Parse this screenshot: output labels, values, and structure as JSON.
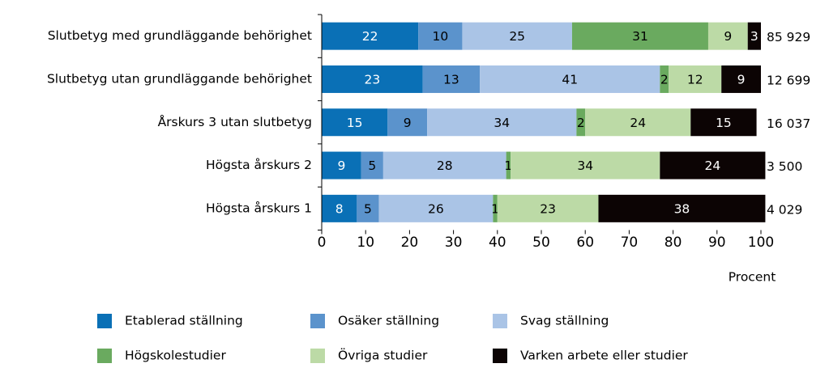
{
  "chart_data": {
    "type": "stacked_bar_horizontal",
    "categories": [
      "Slutbetyg med grundläggande behörighet",
      "Slutbetyg utan grundläggande behörighet",
      "Årskurs 3 utan slutbetyg",
      "Högsta årskurs 2",
      "Högsta årskurs 1"
    ],
    "row_labels": [
      "85 929",
      "12 699",
      "16 037",
      "3 500",
      "4 029"
    ],
    "series": [
      {
        "name": "Etablerad ställning",
        "color": "#0a70b6",
        "label_color": "#ffffff",
        "values": [
          22,
          23,
          15,
          9,
          8
        ]
      },
      {
        "name": "Osäker ställning",
        "color": "#5b93cc",
        "label_color": "#000000",
        "values": [
          10,
          13,
          9,
          5,
          5
        ]
      },
      {
        "name": "Svag ställning",
        "color": "#aac4e6",
        "label_color": "#000000",
        "values": [
          25,
          41,
          34,
          28,
          26
        ]
      },
      {
        "name": "Högskolestudier",
        "color": "#6aaa5f",
        "label_color": "#000000",
        "values": [
          31,
          2,
          2,
          1,
          1
        ]
      },
      {
        "name": "Övriga studier",
        "color": "#bcdaa6",
        "label_color": "#000000",
        "values": [
          9,
          12,
          24,
          34,
          23
        ]
      },
      {
        "name": "Varken arbete eller studier",
        "color": "#0c0404",
        "label_color": "#ffffff",
        "values": [
          3,
          9,
          15,
          24,
          38
        ]
      }
    ],
    "xlim": [
      0,
      100
    ],
    "xticks": [
      0,
      10,
      20,
      30,
      40,
      50,
      60,
      70,
      80,
      90,
      100
    ],
    "x_label": "Procent"
  }
}
